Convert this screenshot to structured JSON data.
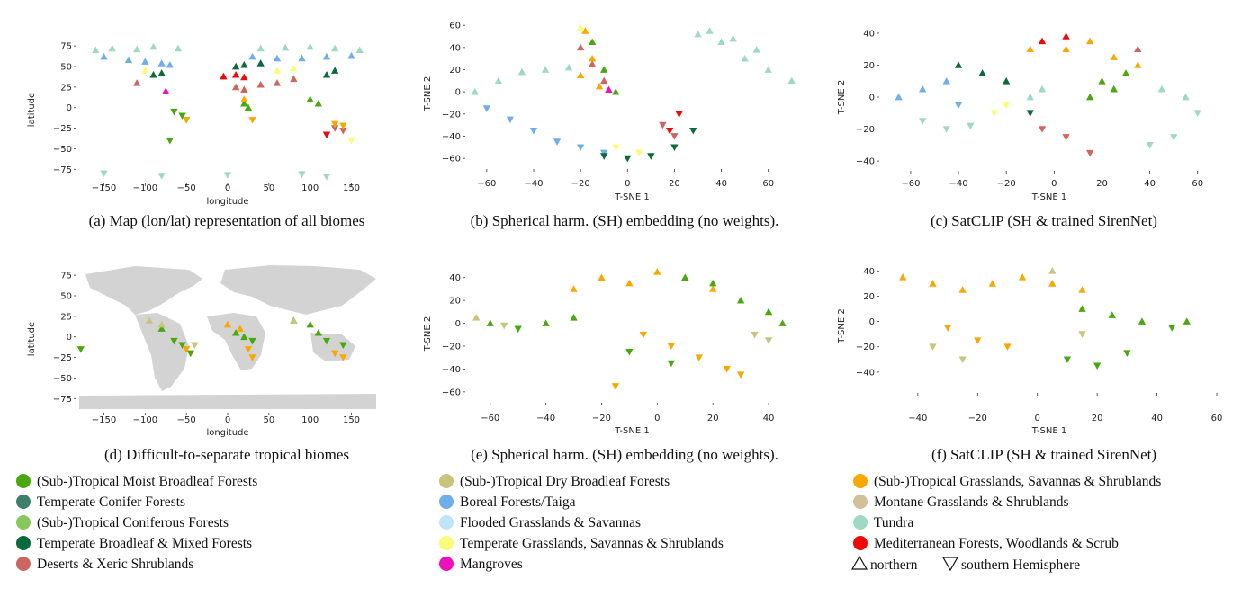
{
  "figure": {
    "captions": [
      "(a) Map (lon/lat) representation of all biomes",
      "(b) Spherical harm. (SH) embedding (no weights).",
      "(c) SatCLIP (SH & trained SirenNet)",
      "(d) Difficult-to-separate tropical biomes",
      "(e) Spherical harm. (SH) embedding (no weights).",
      "(f) SatCLIP (SH & trained SirenNet)"
    ]
  },
  "legend": {
    "items": [
      {
        "label": "(Sub-)Tropical Moist Broadleaf Forests",
        "color": "#4aa80f"
      },
      {
        "label": "Temperate Conifer Forests",
        "color": "#3d7f6a"
      },
      {
        "label": "(Sub-)Tropical Coniferous Forests",
        "color": "#86c85c"
      },
      {
        "label": "Temperate Broadleaf & Mixed Forests",
        "color": "#0b6a3c"
      },
      {
        "label": "Deserts & Xeric Shrublands",
        "color": "#cc6660"
      },
      {
        "label": "(Sub-)Tropical Dry Broadleaf Forests",
        "color": "#c6c57a"
      },
      {
        "label": "Boreal Forests/Taiga",
        "color": "#6eaeea"
      },
      {
        "label": "Flooded Grasslands & Savannas",
        "color": "#bfe3f7"
      },
      {
        "label": "Temperate Grasslands, Savannas & Shrublands",
        "color": "#fbfb7a"
      },
      {
        "label": "Mangroves",
        "color": "#ee10bb"
      },
      {
        "label": "(Sub-)Tropical Grasslands, Savannas & Shrublands",
        "color": "#f8a800"
      },
      {
        "label": "Montane Grasslands & Shrublands",
        "color": "#d2c09a"
      },
      {
        "label": "Tundra",
        "color": "#9fd9c4"
      },
      {
        "label": "Mediterranean Forests, Woodlands & Scrub",
        "color": "#f00808"
      }
    ],
    "hemisphere_note": "northern",
    "hemisphere_note2": "southern Hemisphere"
  },
  "chart_data": [
    {
      "id": "a",
      "type": "scatter",
      "title": "",
      "xlabel": "longitude",
      "ylabel": "latitude",
      "xlim": [
        -180,
        180
      ],
      "ylim": [
        -90,
        85
      ],
      "xticks": [
        -150,
        -100,
        -50,
        0,
        50,
        100,
        150
      ],
      "yticks": [
        75,
        50,
        25,
        0,
        -25,
        -50,
        -75
      ],
      "series": [
        {
          "name": "Tundra",
          "color": "#9fd9c4",
          "x": [
            -160,
            -140,
            -110,
            -90,
            -60,
            40,
            70,
            100,
            130,
            160,
            -150,
            0,
            90,
            -80,
            120
          ],
          "y": [
            70,
            72,
            71,
            74,
            72,
            72,
            73,
            74,
            72,
            70,
            -80,
            -82,
            -81,
            -83,
            -84
          ]
        },
        {
          "name": "Boreal Forests/Taiga",
          "color": "#6eaeea",
          "x": [
            -150,
            -120,
            -100,
            -80,
            -70,
            30,
            60,
            90,
            120,
            150
          ],
          "y": [
            62,
            58,
            56,
            54,
            52,
            62,
            60,
            60,
            62,
            63
          ]
        },
        {
          "name": "Temperate Broadleaf & Mixed Forests",
          "color": "#0b6a3c",
          "x": [
            -90,
            -80,
            10,
            20,
            40,
            120,
            130
          ],
          "y": [
            40,
            42,
            50,
            52,
            54,
            40,
            45
          ]
        },
        {
          "name": "Deserts & Xeric Shrublands",
          "color": "#cc6660",
          "x": [
            -110,
            10,
            20,
            40,
            60,
            80,
            130,
            140
          ],
          "y": [
            30,
            25,
            22,
            28,
            30,
            35,
            -25,
            -28
          ]
        },
        {
          "name": "(Sub-)Tropical Moist Broadleaf Forests",
          "color": "#4aa80f",
          "x": [
            -65,
            -55,
            -50,
            20,
            25,
            100,
            110,
            -70
          ],
          "y": [
            -5,
            -10,
            -15,
            5,
            0,
            10,
            5,
            -40
          ]
        },
        {
          "name": "(Sub-)Tropical Grasslands, Savannas & Shrublands",
          "color": "#f8a800",
          "x": [
            -50,
            20,
            30,
            130,
            140
          ],
          "y": [
            -15,
            10,
            -15,
            -20,
            -22
          ]
        },
        {
          "name": "Temperate Grasslands, Savannas & Shrublands",
          "color": "#fbfb7a",
          "x": [
            -100,
            60,
            80,
            150
          ],
          "y": [
            45,
            45,
            48,
            -40
          ]
        },
        {
          "name": "Mediterranean Forests, Woodlands & Scrub",
          "color": "#f00808",
          "x": [
            -5,
            10,
            20,
            120
          ],
          "y": [
            38,
            40,
            37,
            -33
          ]
        },
        {
          "name": "Mangroves",
          "color": "#ee10bb",
          "x": [
            -75
          ],
          "y": [
            20
          ]
        }
      ]
    },
    {
      "id": "b",
      "type": "scatter",
      "title": "",
      "xlabel": "T-SNE 1",
      "ylabel": "T-SNE 2",
      "xlim": [
        -68,
        72
      ],
      "ylim": [
        -68,
        65
      ],
      "xticks": [
        -60,
        -40,
        -20,
        0,
        20,
        40,
        60
      ],
      "yticks": [
        60,
        40,
        20,
        0,
        -20,
        -40,
        -60
      ],
      "series": [
        {
          "name": "Tundra",
          "color": "#9fd9c4",
          "x": [
            -65,
            -55,
            -45,
            -35,
            -25,
            30,
            40,
            50,
            60,
            70,
            35,
            45,
            55
          ],
          "y": [
            0,
            10,
            18,
            20,
            22,
            52,
            45,
            30,
            20,
            10,
            55,
            48,
            38
          ]
        },
        {
          "name": "Boreal Forests/Taiga",
          "color": "#6eaeea",
          "x": [
            -60,
            -50,
            -40,
            -30,
            -20,
            -10
          ],
          "y": [
            -15,
            -25,
            -35,
            -45,
            -50,
            -55
          ]
        },
        {
          "name": "Temperate Broadleaf & Mixed Forests",
          "color": "#0b6a3c",
          "x": [
            -10,
            0,
            10,
            20,
            28
          ],
          "y": [
            -58,
            -60,
            -58,
            -50,
            -35
          ]
        },
        {
          "name": "Deserts & Xeric Shrublands",
          "color": "#cc6660",
          "x": [
            -20,
            -15,
            -10,
            15,
            20
          ],
          "y": [
            40,
            25,
            10,
            -30,
            -40
          ]
        },
        {
          "name": "(Sub-)Tropical Grasslands, Savannas & Shrublands",
          "color": "#f8a800",
          "x": [
            -18,
            -15,
            -20,
            -12
          ],
          "y": [
            55,
            30,
            15,
            5
          ]
        },
        {
          "name": "(Sub-)Tropical Moist Broadleaf Forests",
          "color": "#4aa80f",
          "x": [
            -15,
            -10,
            -5
          ],
          "y": [
            45,
            20,
            0
          ]
        },
        {
          "name": "Temperate Grasslands, Savannas & Shrublands",
          "color": "#fbfb7a",
          "x": [
            -20,
            -5,
            5
          ],
          "y": [
            58,
            -50,
            -55
          ]
        },
        {
          "name": "Mediterranean Forests, Woodlands & Scrub",
          "color": "#f00808",
          "x": [
            18,
            22
          ],
          "y": [
            -35,
            -20
          ]
        },
        {
          "name": "Mangroves",
          "color": "#ee10bb",
          "x": [
            -8
          ],
          "y": [
            2
          ]
        }
      ]
    },
    {
      "id": "c",
      "type": "scatter",
      "title": "",
      "xlabel": "T-SNE 1",
      "ylabel": "T-SNE 2",
      "xlim": [
        -72,
        68
      ],
      "ylim": [
        -45,
        45
      ],
      "xticks": [
        -60,
        -40,
        -20,
        0,
        20,
        40,
        60
      ],
      "yticks": [
        40,
        20,
        0,
        -20,
        -40
      ],
      "series": [
        {
          "name": "Tundra",
          "color": "#9fd9c4",
          "x": [
            -55,
            -45,
            -35,
            45,
            55,
            60,
            50,
            40,
            -5,
            -10
          ],
          "y": [
            -15,
            -20,
            -18,
            5,
            0,
            -10,
            -25,
            -30,
            5,
            0
          ]
        },
        {
          "name": "Boreal Forests/Taiga",
          "color": "#6eaeea",
          "x": [
            -65,
            -55,
            -45,
            -40
          ],
          "y": [
            0,
            5,
            10,
            -5
          ]
        },
        {
          "name": "Temperate Broadleaf & Mixed Forests",
          "color": "#0b6a3c",
          "x": [
            -40,
            -30,
            -20,
            -10
          ],
          "y": [
            20,
            15,
            10,
            -10
          ]
        },
        {
          "name": "(Sub-)Tropical Grasslands, Savannas & Shrublands",
          "color": "#f8a800",
          "x": [
            5,
            15,
            25,
            35,
            -10
          ],
          "y": [
            30,
            35,
            25,
            20,
            30
          ]
        },
        {
          "name": "(Sub-)Tropical Moist Broadleaf Forests",
          "color": "#4aa80f",
          "x": [
            20,
            25,
            30,
            15
          ],
          "y": [
            10,
            5,
            15,
            0
          ]
        },
        {
          "name": "Deserts & Xeric Shrublands",
          "color": "#cc6660",
          "x": [
            -5,
            5,
            15,
            35
          ],
          "y": [
            -20,
            -25,
            -35,
            30
          ]
        },
        {
          "name": "Temperate Grasslands, Savannas & Shrublands",
          "color": "#fbfb7a",
          "x": [
            -25,
            -20
          ],
          "y": [
            -10,
            -5
          ]
        },
        {
          "name": "Mediterranean Forests, Woodlands & Scrub",
          "color": "#f00808",
          "x": [
            -5,
            5
          ],
          "y": [
            35,
            38
          ]
        }
      ]
    },
    {
      "id": "d",
      "type": "scatter",
      "title": "",
      "xlabel": "longitude",
      "ylabel": "latitude",
      "xlim": [
        -180,
        180
      ],
      "ylim": [
        -90,
        85
      ],
      "xticks": [
        -150,
        -100,
        -50,
        0,
        50,
        100,
        150
      ],
      "yticks": [
        75,
        50,
        25,
        0,
        -25,
        -50,
        -75
      ],
      "series": [
        {
          "name": "(Sub-)Tropical Moist Broadleaf Forests",
          "color": "#4aa80f",
          "x": [
            -80,
            -65,
            -55,
            -45,
            10,
            20,
            30,
            80,
            100,
            110,
            120,
            140,
            -178
          ],
          "y": [
            10,
            -5,
            -10,
            -20,
            5,
            0,
            -5,
            20,
            15,
            5,
            -5,
            -10,
            -15
          ]
        },
        {
          "name": "(Sub-)Tropical Grasslands, Savannas & Shrublands",
          "color": "#f8a800",
          "x": [
            -50,
            0,
            15,
            25,
            30,
            130,
            140
          ],
          "y": [
            -15,
            15,
            10,
            -15,
            -25,
            -20,
            -25
          ]
        },
        {
          "name": "(Sub-)Tropical Dry Broadleaf Forests",
          "color": "#c6c57a",
          "x": [
            -95,
            -80,
            -40,
            80
          ],
          "y": [
            20,
            15,
            -10,
            20
          ]
        }
      ]
    },
    {
      "id": "e",
      "type": "scatter",
      "title": "",
      "xlabel": "T-SNE 1",
      "ylabel": "T-SNE 2",
      "xlim": [
        -68,
        50
      ],
      "ylim": [
        -68,
        50
      ],
      "xticks": [
        -60,
        -40,
        -20,
        0,
        20,
        40
      ],
      "yticks": [
        40,
        20,
        0,
        -20,
        -40,
        -60
      ],
      "series": [
        {
          "name": "(Sub-)Tropical Grasslands, Savannas & Shrublands",
          "color": "#f8a800",
          "x": [
            -30,
            -20,
            -10,
            0,
            10,
            20,
            -5,
            5,
            15,
            25,
            -15,
            30
          ],
          "y": [
            30,
            40,
            35,
            45,
            40,
            30,
            -10,
            -20,
            -30,
            -40,
            -55,
            -45
          ]
        },
        {
          "name": "(Sub-)Tropical Moist Broadleaf Forests",
          "color": "#4aa80f",
          "x": [
            -60,
            -50,
            -40,
            -30,
            10,
            20,
            30,
            40,
            45,
            -10,
            5
          ],
          "y": [
            0,
            -5,
            0,
            5,
            40,
            35,
            20,
            10,
            0,
            -25,
            -35
          ]
        },
        {
          "name": "(Sub-)Tropical Dry Broadleaf Forests",
          "color": "#c6c57a",
          "x": [
            -65,
            -55,
            35,
            40
          ],
          "y": [
            5,
            -2,
            -10,
            -15
          ]
        }
      ]
    },
    {
      "id": "f",
      "type": "scatter",
      "title": "",
      "xlabel": "T-SNE 1",
      "ylabel": "T-SNE 2",
      "xlim": [
        -52,
        60
      ],
      "ylim": [
        -55,
        48
      ],
      "xticks": [
        -40,
        -20,
        0,
        20,
        40,
        60
      ],
      "yticks": [
        40,
        20,
        0,
        -20,
        -40
      ],
      "series": [
        {
          "name": "(Sub-)Tropical Grasslands, Savannas & Shrublands",
          "color": "#f8a800",
          "x": [
            -45,
            -35,
            -25,
            -15,
            -5,
            5,
            15,
            -30,
            -20,
            -10
          ],
          "y": [
            35,
            30,
            25,
            30,
            35,
            30,
            25,
            -5,
            -15,
            -20
          ]
        },
        {
          "name": "(Sub-)Tropical Moist Broadleaf Forests",
          "color": "#4aa80f",
          "x": [
            15,
            25,
            35,
            45,
            50,
            10,
            20,
            30
          ],
          "y": [
            10,
            5,
            0,
            -5,
            0,
            -30,
            -35,
            -25
          ]
        },
        {
          "name": "(Sub-)Tropical Dry Broadleaf Forests",
          "color": "#c6c57a",
          "x": [
            -35,
            -25,
            5,
            15
          ],
          "y": [
            -20,
            -30,
            40,
            -10
          ]
        }
      ]
    }
  ]
}
